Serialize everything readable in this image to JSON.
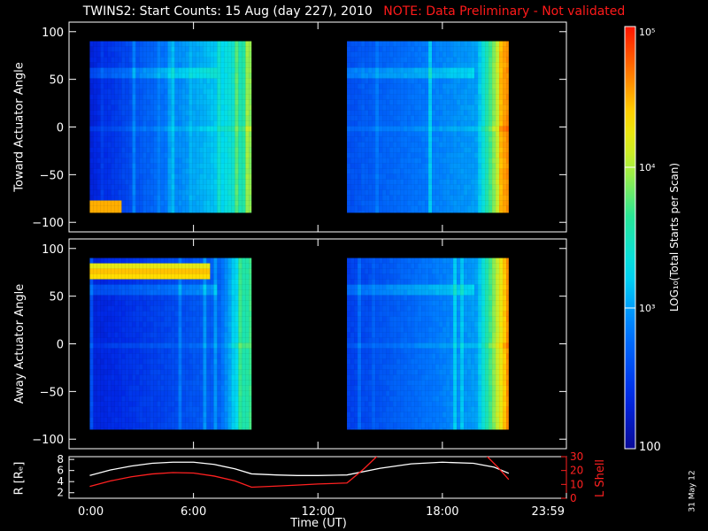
{
  "title": {
    "main": "TWINS2: Start Counts: 15 Aug (day 227), 2010",
    "note": "NOTE: Data Preliminary - Not validated"
  },
  "colors": {
    "background": "#000000",
    "axes": "#ffffff",
    "note": "#ff1a1a",
    "r_line": "#ffffff",
    "lshell_line": "#ff2020"
  },
  "colorbar": {
    "label": "LOG₁₀(Total Starts per Scan)",
    "ticks": [
      {
        "value": 100,
        "label": "100"
      },
      {
        "value": 1000,
        "label": "10³"
      },
      {
        "value": 10000,
        "label": "10⁴"
      },
      {
        "value": 100000,
        "label": "10⁵"
      }
    ],
    "range": [
      100,
      100000
    ],
    "scale": "log",
    "colormap": "rainbow"
  },
  "datestamp": "31 May 12",
  "x_axis": {
    "title": "Time (UT)",
    "ticks": [
      "0:00",
      "6:00",
      "12:00",
      "18:00",
      "23:59"
    ],
    "range_hours": [
      0,
      23.98
    ]
  },
  "chart_data": [
    {
      "type": "heatmap",
      "ylabel": "Toward Actuator Angle",
      "ylim": [
        -110,
        110
      ],
      "yticks": [
        100,
        50,
        0,
        -50,
        -100
      ],
      "x_range_hours": [
        0,
        24
      ],
      "data_segments_hours": [
        [
          1.0,
          8.8
        ],
        [
          13.4,
          21.2
        ]
      ],
      "angle_range": [
        -90,
        90
      ],
      "log_counts_typical": {
        "segment1": {
          "start": 2.3,
          "late": 3.2,
          "end": 3.7
        },
        "segment2": {
          "start": 2.6,
          "late": 3.0,
          "end": 4.6
        }
      }
    },
    {
      "type": "heatmap",
      "ylabel": "Away Actuator Angle",
      "ylim": [
        -110,
        110
      ],
      "yticks": [
        100,
        50,
        0,
        -50,
        -100
      ],
      "x_range_hours": [
        0,
        24
      ],
      "data_segments_hours": [
        [
          1.0,
          8.8
        ],
        [
          13.4,
          21.2
        ]
      ],
      "angle_range": [
        -90,
        90
      ],
      "high_band_angle": [
        70,
        85
      ],
      "log_counts_typical": {
        "segment1": {
          "start": 2.3,
          "band": 4.5,
          "end": 3.7
        },
        "segment2": {
          "start": 2.5,
          "late": 3.0,
          "end": 4.6
        }
      }
    },
    {
      "type": "line",
      "ylabel_left": "R [Rₑ]",
      "ylabel_right": "L Shell",
      "ylim_left": [
        1,
        8.5
      ],
      "ylim_right": [
        0,
        30
      ],
      "yticks_left": [
        2,
        4,
        6,
        8
      ],
      "yticks_right": [
        0,
        10,
        20,
        30
      ],
      "series": [
        {
          "name": "R [Rₑ]",
          "axis": "left",
          "x": [
            1.0,
            2.0,
            3.0,
            4.0,
            5.0,
            6.0,
            7.0,
            8.0,
            8.8,
            10.0,
            11.0,
            12.0,
            13.4,
            15.0,
            16.5,
            18.0,
            19.5,
            20.5,
            21.2
          ],
          "y": [
            5.1,
            6.1,
            6.8,
            7.3,
            7.5,
            7.5,
            7.1,
            6.3,
            5.4,
            5.2,
            5.1,
            5.1,
            5.2,
            6.4,
            7.2,
            7.5,
            7.3,
            6.6,
            5.5
          ]
        },
        {
          "name": "L Shell",
          "axis": "right",
          "x": [
            1.0,
            2.0,
            3.0,
            4.0,
            5.0,
            6.0,
            7.0,
            8.0,
            8.8,
            10.0,
            11.0,
            12.0,
            13.4,
            14.2,
            14.9,
            20.1,
            20.7,
            21.2
          ],
          "y": [
            8.5,
            12.5,
            15.5,
            17.5,
            18.5,
            18.2,
            16.0,
            12.5,
            8.0,
            8.8,
            9.5,
            10.3,
            11.0,
            21.0,
            31.0,
            31.0,
            22.0,
            13.5
          ]
        }
      ]
    }
  ]
}
